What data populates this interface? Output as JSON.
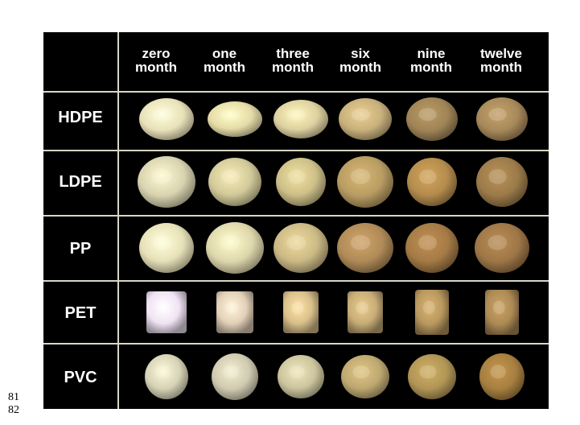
{
  "line_numbers": [
    "81",
    "82"
  ],
  "columns": [
    {
      "line1": "zero",
      "line2": "month"
    },
    {
      "line1": "one",
      "line2": "month"
    },
    {
      "line1": "three",
      "line2": "month"
    },
    {
      "line1": "six",
      "line2": "month"
    },
    {
      "line1": "nine",
      "line2": "month"
    },
    {
      "line1": "twelve",
      "line2": "month"
    }
  ],
  "rows": [
    {
      "label": "HDPE"
    },
    {
      "label": "LDPE"
    },
    {
      "label": "PP"
    },
    {
      "label": "PET"
    },
    {
      "label": "PVC"
    }
  ],
  "colors": {
    "background": "#000000",
    "grid_lines": "#d9d6c2",
    "header_text": "#ffffff"
  },
  "samples": {
    "HDPE": [
      "#e8e1b9",
      "#e5dba8",
      "#ddd1a0",
      "#c8b07c",
      "#9f8456",
      "#a7895a"
    ],
    "LDPE": [
      "#d8d3b0",
      "#d2c99a",
      "#cdbf88",
      "#b89c62",
      "#b48c4d",
      "#9c7b4a"
    ],
    "PP": [
      "#e6e0b8",
      "#ddd6ac",
      "#cbb985",
      "#b08b58",
      "#a47a46",
      "#9e7747"
    ],
    "PET": [
      "#f0e3f4",
      "#e2d0b8",
      "#d8c08b",
      "#c8ad78",
      "#b9985f",
      "#ad8a55"
    ],
    "PVC": [
      "#d6d2b6",
      "#cfcab0",
      "#cbc49e",
      "#bea871",
      "#b19556",
      "#a67f40"
    ]
  }
}
